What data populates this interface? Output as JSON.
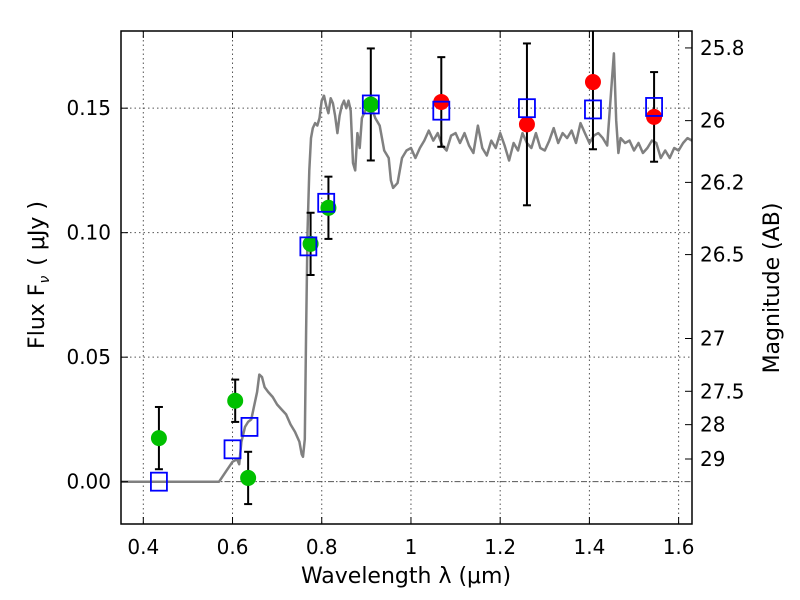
{
  "chart_data": {
    "type": "scatter",
    "title": "",
    "xlabel": "Wavelength  λ (μm)",
    "ylabel": "Flux  F",
    "ylabel_sub": "ν",
    "ylabel_unit": "( μJy )",
    "y2label": "Magnitude (AB)",
    "xlim": [
      0.35,
      1.63
    ],
    "ylim": [
      -0.017,
      0.181
    ],
    "xticks": [
      0.4,
      0.6,
      0.8,
      1.0,
      1.2,
      1.4,
      1.6
    ],
    "xtick_labels": [
      "0.4",
      "0.6",
      "0.8",
      "1",
      "1.2",
      "1.4",
      "1.6"
    ],
    "yticks": [
      0.0,
      0.05,
      0.1,
      0.15
    ],
    "ytick_labels": [
      "0.00",
      "0.05",
      "0.10",
      "0.15"
    ],
    "y2_ticks": [
      {
        "flux": 0.1742,
        "label": "25.8"
      },
      {
        "flux": 0.145,
        "label": "26"
      },
      {
        "flux": 0.1202,
        "label": "26.2"
      },
      {
        "flux": 0.0912,
        "label": "26.5"
      },
      {
        "flux": 0.0575,
        "label": "27"
      },
      {
        "flux": 0.0363,
        "label": "27.5"
      },
      {
        "flux": 0.0229,
        "label": "28"
      },
      {
        "flux": 0.0091,
        "label": "29"
      }
    ],
    "grid": true,
    "zero_line": true,
    "colors": {
      "model": "#808080",
      "green": "#00c000",
      "red": "#ff0000",
      "square": "#0000ff",
      "errorbar": "#000000",
      "grid": "#555555",
      "zero_line": "#555555"
    },
    "series": [
      {
        "style": "line",
        "color": "#808080",
        "points": [
          [
            0.35,
            0.0
          ],
          [
            0.57,
            0.0
          ],
          [
            0.585,
            0.004
          ],
          [
            0.6,
            0.008
          ],
          [
            0.61,
            0.009
          ],
          [
            0.615,
            0.007
          ],
          [
            0.62,
            0.016
          ],
          [
            0.628,
            0.022
          ],
          [
            0.635,
            0.024
          ],
          [
            0.642,
            0.025
          ],
          [
            0.648,
            0.03
          ],
          [
            0.655,
            0.036
          ],
          [
            0.66,
            0.043
          ],
          [
            0.666,
            0.042
          ],
          [
            0.672,
            0.038
          ],
          [
            0.68,
            0.036
          ],
          [
            0.69,
            0.034
          ],
          [
            0.7,
            0.031
          ],
          [
            0.71,
            0.029
          ],
          [
            0.72,
            0.027
          ],
          [
            0.73,
            0.023
          ],
          [
            0.74,
            0.02
          ],
          [
            0.75,
            0.016
          ],
          [
            0.755,
            0.011
          ],
          [
            0.758,
            0.01
          ],
          [
            0.762,
            0.017
          ],
          [
            0.765,
            0.06
          ],
          [
            0.768,
            0.1
          ],
          [
            0.772,
            0.125
          ],
          [
            0.776,
            0.138
          ],
          [
            0.78,
            0.142
          ],
          [
            0.785,
            0.144
          ],
          [
            0.79,
            0.143
          ],
          [
            0.795,
            0.146
          ],
          [
            0.8,
            0.153
          ],
          [
            0.805,
            0.155
          ],
          [
            0.81,
            0.151
          ],
          [
            0.815,
            0.148
          ],
          [
            0.82,
            0.154
          ],
          [
            0.825,
            0.152
          ],
          [
            0.83,
            0.147
          ],
          [
            0.835,
            0.14
          ],
          [
            0.84,
            0.147
          ],
          [
            0.845,
            0.151
          ],
          [
            0.85,
            0.153
          ],
          [
            0.855,
            0.15
          ],
          [
            0.86,
            0.153
          ],
          [
            0.865,
            0.149
          ],
          [
            0.87,
            0.128
          ],
          [
            0.875,
            0.125
          ],
          [
            0.88,
            0.14
          ],
          [
            0.885,
            0.134
          ],
          [
            0.89,
            0.146
          ],
          [
            0.895,
            0.148
          ],
          [
            0.9,
            0.15
          ],
          [
            0.91,
            0.151
          ],
          [
            0.92,
            0.146
          ],
          [
            0.93,
            0.143
          ],
          [
            0.94,
            0.133
          ],
          [
            0.95,
            0.13
          ],
          [
            0.955,
            0.121
          ],
          [
            0.96,
            0.118
          ],
          [
            0.97,
            0.12
          ],
          [
            0.98,
            0.13
          ],
          [
            0.99,
            0.133
          ],
          [
            1.0,
            0.134
          ],
          [
            1.01,
            0.13
          ],
          [
            1.02,
            0.134
          ],
          [
            1.03,
            0.137
          ],
          [
            1.04,
            0.141
          ],
          [
            1.05,
            0.137
          ],
          [
            1.06,
            0.14
          ],
          [
            1.07,
            0.135
          ],
          [
            1.08,
            0.133
          ],
          [
            1.09,
            0.139
          ],
          [
            1.1,
            0.14
          ],
          [
            1.11,
            0.136
          ],
          [
            1.12,
            0.14
          ],
          [
            1.13,
            0.135
          ],
          [
            1.14,
            0.132
          ],
          [
            1.15,
            0.143
          ],
          [
            1.16,
            0.134
          ],
          [
            1.17,
            0.131
          ],
          [
            1.18,
            0.137
          ],
          [
            1.19,
            0.134
          ],
          [
            1.2,
            0.14
          ],
          [
            1.21,
            0.135
          ],
          [
            1.22,
            0.129
          ],
          [
            1.23,
            0.136
          ],
          [
            1.24,
            0.133
          ],
          [
            1.25,
            0.14
          ],
          [
            1.26,
            0.136
          ],
          [
            1.27,
            0.134
          ],
          [
            1.28,
            0.14
          ],
          [
            1.29,
            0.134
          ],
          [
            1.3,
            0.133
          ],
          [
            1.31,
            0.137
          ],
          [
            1.32,
            0.142
          ],
          [
            1.33,
            0.136
          ],
          [
            1.34,
            0.14
          ],
          [
            1.35,
            0.138
          ],
          [
            1.36,
            0.141
          ],
          [
            1.37,
            0.136
          ],
          [
            1.38,
            0.144
          ],
          [
            1.39,
            0.14
          ],
          [
            1.4,
            0.136
          ],
          [
            1.41,
            0.139
          ],
          [
            1.42,
            0.14
          ],
          [
            1.43,
            0.138
          ],
          [
            1.44,
            0.135
          ],
          [
            1.45,
            0.16
          ],
          [
            1.455,
            0.172
          ],
          [
            1.46,
            0.145
          ],
          [
            1.465,
            0.132
          ],
          [
            1.47,
            0.138
          ],
          [
            1.48,
            0.136
          ],
          [
            1.49,
            0.137
          ],
          [
            1.5,
            0.133
          ],
          [
            1.51,
            0.136
          ],
          [
            1.52,
            0.132
          ],
          [
            1.53,
            0.134
          ],
          [
            1.54,
            0.137
          ],
          [
            1.55,
            0.136
          ],
          [
            1.56,
            0.13
          ],
          [
            1.57,
            0.133
          ],
          [
            1.58,
            0.13
          ],
          [
            1.59,
            0.134
          ],
          [
            1.6,
            0.133
          ],
          [
            1.61,
            0.136
          ],
          [
            1.62,
            0.138
          ],
          [
            1.63,
            0.137
          ]
        ]
      },
      {
        "style": "marker-circle",
        "color": "#00c000",
        "points": [
          [
            0.435,
            0.0175
          ],
          [
            0.606,
            0.0325
          ],
          [
            0.635,
            0.0015
          ],
          [
            0.775,
            0.0955
          ],
          [
            0.815,
            0.11
          ],
          [
            0.91,
            0.1515
          ]
        ]
      },
      {
        "style": "marker-circle",
        "color": "#ff0000",
        "points": [
          [
            1.068,
            0.1525
          ],
          [
            1.26,
            0.1435
          ],
          [
            1.408,
            0.1605
          ],
          [
            1.545,
            0.1465
          ]
        ]
      },
      {
        "style": "marker-square",
        "color": "#0000ff",
        "points": [
          [
            0.435,
            0.0
          ],
          [
            0.6,
            0.013
          ],
          [
            0.638,
            0.022
          ],
          [
            0.77,
            0.0945
          ],
          [
            0.81,
            0.112
          ],
          [
            0.91,
            0.1515
          ],
          [
            1.068,
            0.149
          ],
          [
            1.26,
            0.15
          ],
          [
            1.408,
            0.1495
          ],
          [
            1.545,
            0.1505
          ]
        ]
      },
      {
        "style": "errorbar",
        "color": "#000000",
        "points": [
          {
            "x": 0.435,
            "y": 0.0175,
            "err": 0.0125
          },
          {
            "x": 0.606,
            "y": 0.0325,
            "err": 0.0085
          },
          {
            "x": 0.635,
            "y": 0.0015,
            "err": 0.0105
          },
          {
            "x": 0.775,
            "y": 0.0955,
            "err": 0.0125
          },
          {
            "x": 0.815,
            "y": 0.11,
            "err": 0.0125
          },
          {
            "x": 0.91,
            "y": 0.1515,
            "err": 0.0225
          },
          {
            "x": 1.068,
            "y": 0.1525,
            "err": 0.018
          },
          {
            "x": 1.26,
            "y": 0.1435,
            "err": 0.0325
          },
          {
            "x": 1.408,
            "y": 0.1605,
            "err": 0.027
          },
          {
            "x": 1.545,
            "y": 0.1465,
            "err": 0.018
          }
        ]
      }
    ]
  }
}
